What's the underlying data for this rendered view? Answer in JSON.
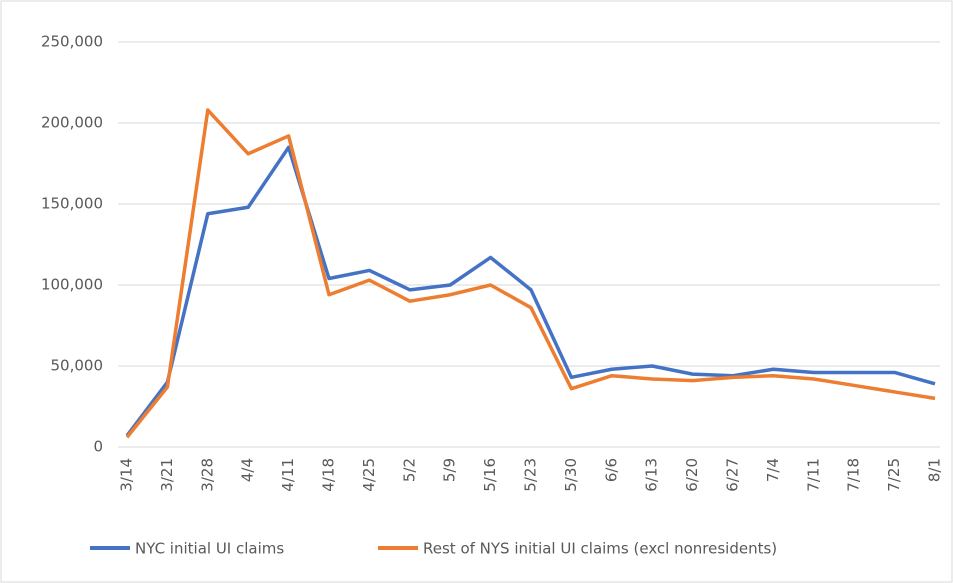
{
  "chart_data": {
    "type": "line",
    "categories": [
      "3/14",
      "3/21",
      "3/28",
      "4/4",
      "4/11",
      "4/18",
      "4/25",
      "5/2",
      "5/9",
      "5/16",
      "5/23",
      "5/30",
      "6/6",
      "6/13",
      "6/20",
      "6/27",
      "7/4",
      "7/11",
      "7/18",
      "7/25",
      "8/1"
    ],
    "series": [
      {
        "name": "NYC initial UI claims",
        "color": "#4472c4",
        "values": [
          7000,
          40000,
          144000,
          148000,
          185000,
          104000,
          109000,
          97000,
          100000,
          117000,
          97000,
          43000,
          48000,
          50000,
          45000,
          44000,
          48000,
          46000,
          46000,
          46000,
          39000
        ]
      },
      {
        "name": "Rest of NYS initial UI claims (excl nonresidents)",
        "color": "#ed7d31",
        "values": [
          6000,
          37000,
          208000,
          181000,
          192000,
          94000,
          103000,
          90000,
          94000,
          100000,
          86000,
          36000,
          44000,
          42000,
          41000,
          43000,
          44000,
          42000,
          38000,
          34000,
          30000
        ]
      }
    ],
    "ylim": [
      0,
      250000
    ],
    "yticks": [
      0,
      {
        "value": 50000,
        "label": "50,000"
      },
      {
        "value": 100000,
        "label": "100,000"
      },
      {
        "value": 150000,
        "label": "150,000"
      },
      {
        "value": 200000,
        "label": "200,000"
      },
      {
        "value": 250000,
        "label": "250,000"
      }
    ],
    "grid": true,
    "legend": "bottom"
  }
}
